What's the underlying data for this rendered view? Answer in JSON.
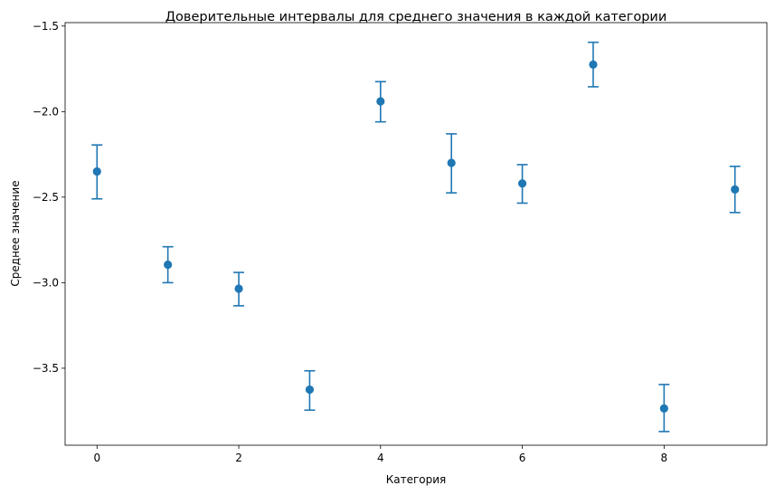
{
  "chart_data": {
    "type": "scatter",
    "title": "Доверительные интервалы для среднего значения в каждой категории",
    "xlabel": "Категория",
    "ylabel": "Среднее значение",
    "xlim": [
      -0.45,
      9.45
    ],
    "ylim": [
      -3.95,
      -1.48
    ],
    "xticks": [
      0,
      2,
      4,
      6,
      8
    ],
    "xtick_labels": [
      "0",
      "2",
      "4",
      "6",
      "8"
    ],
    "yticks": [
      -1.5,
      -2.0,
      -2.5,
      -3.0,
      -3.5
    ],
    "ytick_labels": [
      "−1.5",
      "−2.0",
      "−2.5",
      "−3.0",
      "−3.5"
    ],
    "grid": false,
    "color": "#1f77b4",
    "x": [
      0,
      1,
      2,
      3,
      4,
      5,
      6,
      7,
      8,
      9
    ],
    "y": [
      -2.35,
      -2.895,
      -3.035,
      -3.625,
      -1.94,
      -2.3,
      -2.42,
      -1.725,
      -3.735,
      -2.455
    ],
    "ci_lower": [
      -2.51,
      -3.0,
      -3.135,
      -3.745,
      -2.06,
      -2.475,
      -2.535,
      -1.855,
      -3.87,
      -2.59
    ],
    "ci_upper": [
      -2.195,
      -2.79,
      -2.94,
      -3.515,
      -1.825,
      -2.13,
      -2.31,
      -1.595,
      -3.595,
      -2.32
    ]
  }
}
